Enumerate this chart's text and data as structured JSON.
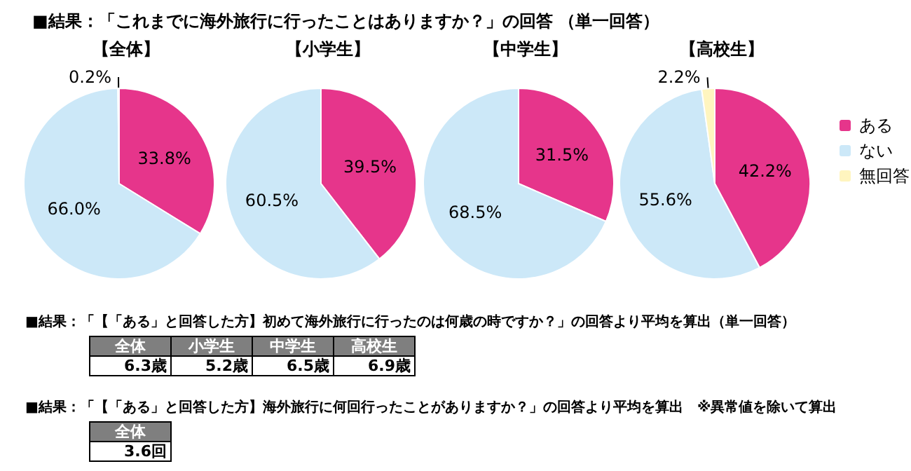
{
  "chart_data": [
    {
      "type": "pie",
      "title": "■結果：「これまでに海外旅行に行ったことはありますか？」の回答 （単一回答）",
      "categories": [
        "ある",
        "ない",
        "無回答"
      ],
      "colors": [
        "#e6358b",
        "#cce8f8",
        "#fff5bf"
      ],
      "legend": "right",
      "series": [
        {
          "name": "【全体】",
          "values": [
            33.8,
            66.0,
            0.2
          ],
          "value_labels": [
            "33.8%",
            "66.0%",
            "0.2%"
          ]
        },
        {
          "name": "【小学生】",
          "values": [
            39.5,
            60.5,
            0
          ],
          "value_labels": [
            "39.5%",
            "60.5%",
            null
          ]
        },
        {
          "name": "【中学生】",
          "values": [
            31.5,
            68.5,
            0
          ],
          "value_labels": [
            "31.5%",
            "68.5%",
            null
          ]
        },
        {
          "name": "【高校生】",
          "values": [
            42.2,
            55.6,
            2.2
          ],
          "value_labels": [
            "42.2%",
            "55.6%",
            "2.2%"
          ]
        }
      ]
    },
    {
      "type": "other",
      "title": "■結果：「【「ある」と回答した方】初めて海外旅行に行ったのは何歳の時ですか？」の回答より平均を算出（単一回答）",
      "categories": [
        "全体",
        "小学生",
        "中学生",
        "高校生"
      ],
      "value_labels": [
        "6.3歳",
        "5.2歳",
        "6.5歳",
        "6.9歳"
      ]
    },
    {
      "type": "other",
      "title": "■結果：「【「ある」と回答した方】海外旅行に何回行ったことがありますか？」の回答より平均を算出　※異常値を除いて算出",
      "categories": [
        "全体"
      ],
      "value_labels": [
        "3.6回"
      ]
    }
  ]
}
